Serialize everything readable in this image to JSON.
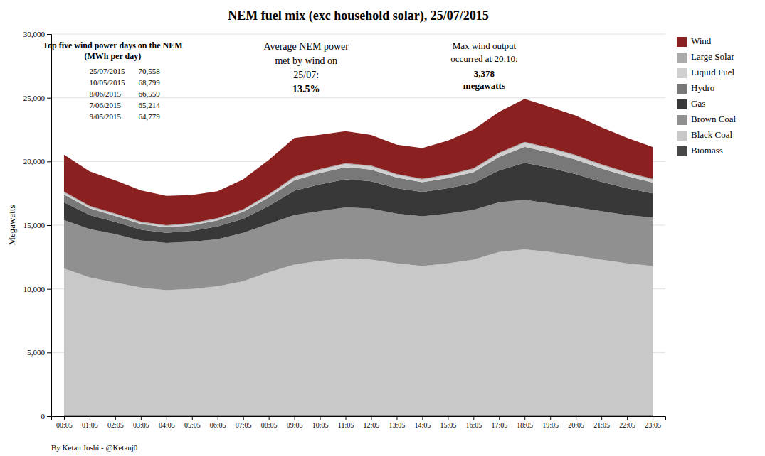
{
  "chart_data": {
    "type": "area",
    "stacked": true,
    "title": "NEM fuel mix (exc household solar), 25/07/2015",
    "ylabel": "Megawatts",
    "categories": [
      "00:05",
      "01:05",
      "02:05",
      "03:05",
      "04:05",
      "05:05",
      "06:05",
      "07:05",
      "08:05",
      "09:05",
      "10:05",
      "11:05",
      "12:05",
      "13:05",
      "14:05",
      "15:05",
      "16:05",
      "17:05",
      "18:05",
      "19:05",
      "20:05",
      "21:05",
      "22:05",
      "23:05"
    ],
    "series": [
      {
        "name": "Biomass",
        "color": "#484848",
        "values": [
          100,
          100,
          100,
          100,
          100,
          100,
          100,
          100,
          100,
          100,
          100,
          100,
          100,
          100,
          100,
          100,
          100,
          100,
          100,
          100,
          100,
          100,
          100,
          100
        ]
      },
      {
        "name": "Black Coal",
        "color": "#C8C8C8",
        "values": [
          11500,
          10800,
          10400,
          10000,
          9800,
          9900,
          10100,
          10500,
          11200,
          11800,
          12100,
          12300,
          12200,
          11900,
          11700,
          11900,
          12200,
          12800,
          13000,
          12800,
          12500,
          12200,
          11900,
          11700
        ]
      },
      {
        "name": "Brown Coal",
        "color": "#909090",
        "values": [
          3800,
          3800,
          3800,
          3700,
          3700,
          3700,
          3700,
          3800,
          3800,
          3900,
          3900,
          4000,
          4000,
          3900,
          3900,
          3900,
          3900,
          3900,
          3900,
          3800,
          3800,
          3800,
          3800,
          3800
        ]
      },
      {
        "name": "Gas",
        "color": "#383838",
        "values": [
          1400,
          1100,
          950,
          850,
          800,
          850,
          1000,
          1100,
          1400,
          1900,
          2100,
          2200,
          2150,
          2000,
          1900,
          2000,
          2100,
          2500,
          2900,
          2800,
          2600,
          2300,
          2100,
          1900
        ]
      },
      {
        "name": "Hydro",
        "color": "#787878",
        "values": [
          600,
          520,
          480,
          450,
          430,
          440,
          470,
          540,
          680,
          820,
          900,
          950,
          920,
          830,
          770,
          800,
          860,
          1050,
          1250,
          1200,
          1150,
          1050,
          950,
          850
        ]
      },
      {
        "name": "Liquid Fuel",
        "color": "#D0D0D0",
        "values": [
          150,
          120,
          110,
          100,
          95,
          100,
          110,
          125,
          160,
          200,
          220,
          240,
          230,
          210,
          195,
          200,
          215,
          260,
          310,
          295,
          275,
          250,
          225,
          205
        ]
      },
      {
        "name": "Large Solar",
        "color": "#AAAAAA",
        "values": [
          80,
          80,
          80,
          80,
          80,
          80,
          80,
          80,
          80,
          80,
          80,
          80,
          80,
          80,
          80,
          80,
          80,
          80,
          80,
          80,
          80,
          80,
          80,
          80
        ]
      },
      {
        "name": "Wind",
        "color": "#8B2020",
        "values": [
          2900,
          2700,
          2600,
          2450,
          2300,
          2200,
          2100,
          2350,
          2700,
          3050,
          2700,
          2500,
          2400,
          2300,
          2400,
          2650,
          3050,
          3200,
          3378,
          3200,
          3100,
          2900,
          2700,
          2500
        ]
      }
    ],
    "ylim": [
      0,
      30000
    ],
    "yticks": [
      0,
      {
        "value": 5000,
        "label": "5,000"
      },
      {
        "value": 10000,
        "label": "10,000"
      },
      {
        "value": 15000,
        "label": "15,000"
      },
      {
        "value": 20000,
        "label": "20,000"
      },
      {
        "value": 25000,
        "label": "25,000"
      },
      {
        "value": 30000,
        "label": "30,000"
      }
    ],
    "grid": true,
    "legend": "right",
    "annotations": [
      {
        "text": "Top five wind power days on the NEM\n(MWh per day)"
      },
      {
        "text": "Average NEM power\nmet by wind on\n25/07:"
      },
      {
        "text": "13.5%"
      },
      {
        "text": "Max wind output\noccurred at 20:10:"
      },
      {
        "text": "3,378\nmegawatts"
      },
      {
        "text": "By Ketan Joshi - @Ketanj0"
      }
    ],
    "annotation_table": [
      [
        "25/07/2015",
        "70,558"
      ],
      [
        "10/05/2015",
        "68,799"
      ],
      [
        "8/06/2015",
        "66,559"
      ],
      [
        "7/06/2015",
        "65,214"
      ],
      [
        "9/05/2015",
        "64,779"
      ]
    ]
  }
}
